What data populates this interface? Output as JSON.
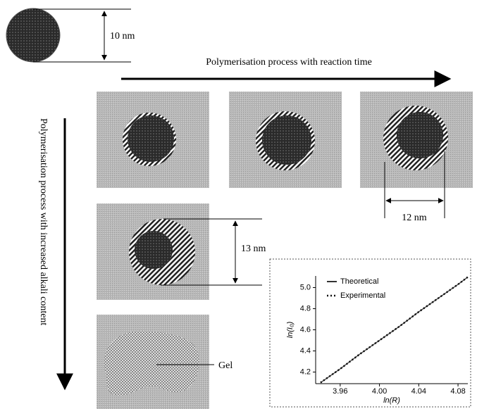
{
  "labels": {
    "top_size": "10 nm",
    "horizontal_arrow": "Polymerisation process with reaction time",
    "vertical_arrow": "Polymerisation process with increased alkali content",
    "ring_size": "12 nm",
    "row2_size": "13 nm",
    "gel": "Gel"
  },
  "chart_data": {
    "type": "line",
    "x_label": "ln(R)",
    "y_label": "ln(I₀)",
    "x": [
      3.94,
      3.96,
      3.98,
      4.0,
      4.02,
      4.04,
      4.06,
      4.08,
      4.09
    ],
    "series": [
      {
        "name": "Theoretical",
        "color": "#333333",
        "style": "solid",
        "values": [
          4.1,
          4.23,
          4.37,
          4.5,
          4.63,
          4.77,
          4.9,
          5.03,
          5.1
        ]
      },
      {
        "name": "Experimental",
        "color": "#111111",
        "style": "dotted",
        "values": [
          4.1,
          4.23,
          4.37,
          4.5,
          4.63,
          4.77,
          4.9,
          5.03,
          5.1
        ]
      }
    ],
    "xlim": [
      3.935,
      4.09
    ],
    "ylim": [
      4.09,
      5.11
    ],
    "xticks": [
      3.96,
      {
        "value": 4,
        "label": "4.00"
      },
      4.04,
      4.08
    ],
    "yticks": [
      4.2,
      4.4,
      4.6,
      4.8,
      {
        "value": 5,
        "label": "5.0"
      }
    ],
    "grid": false,
    "legend": "top-left"
  }
}
